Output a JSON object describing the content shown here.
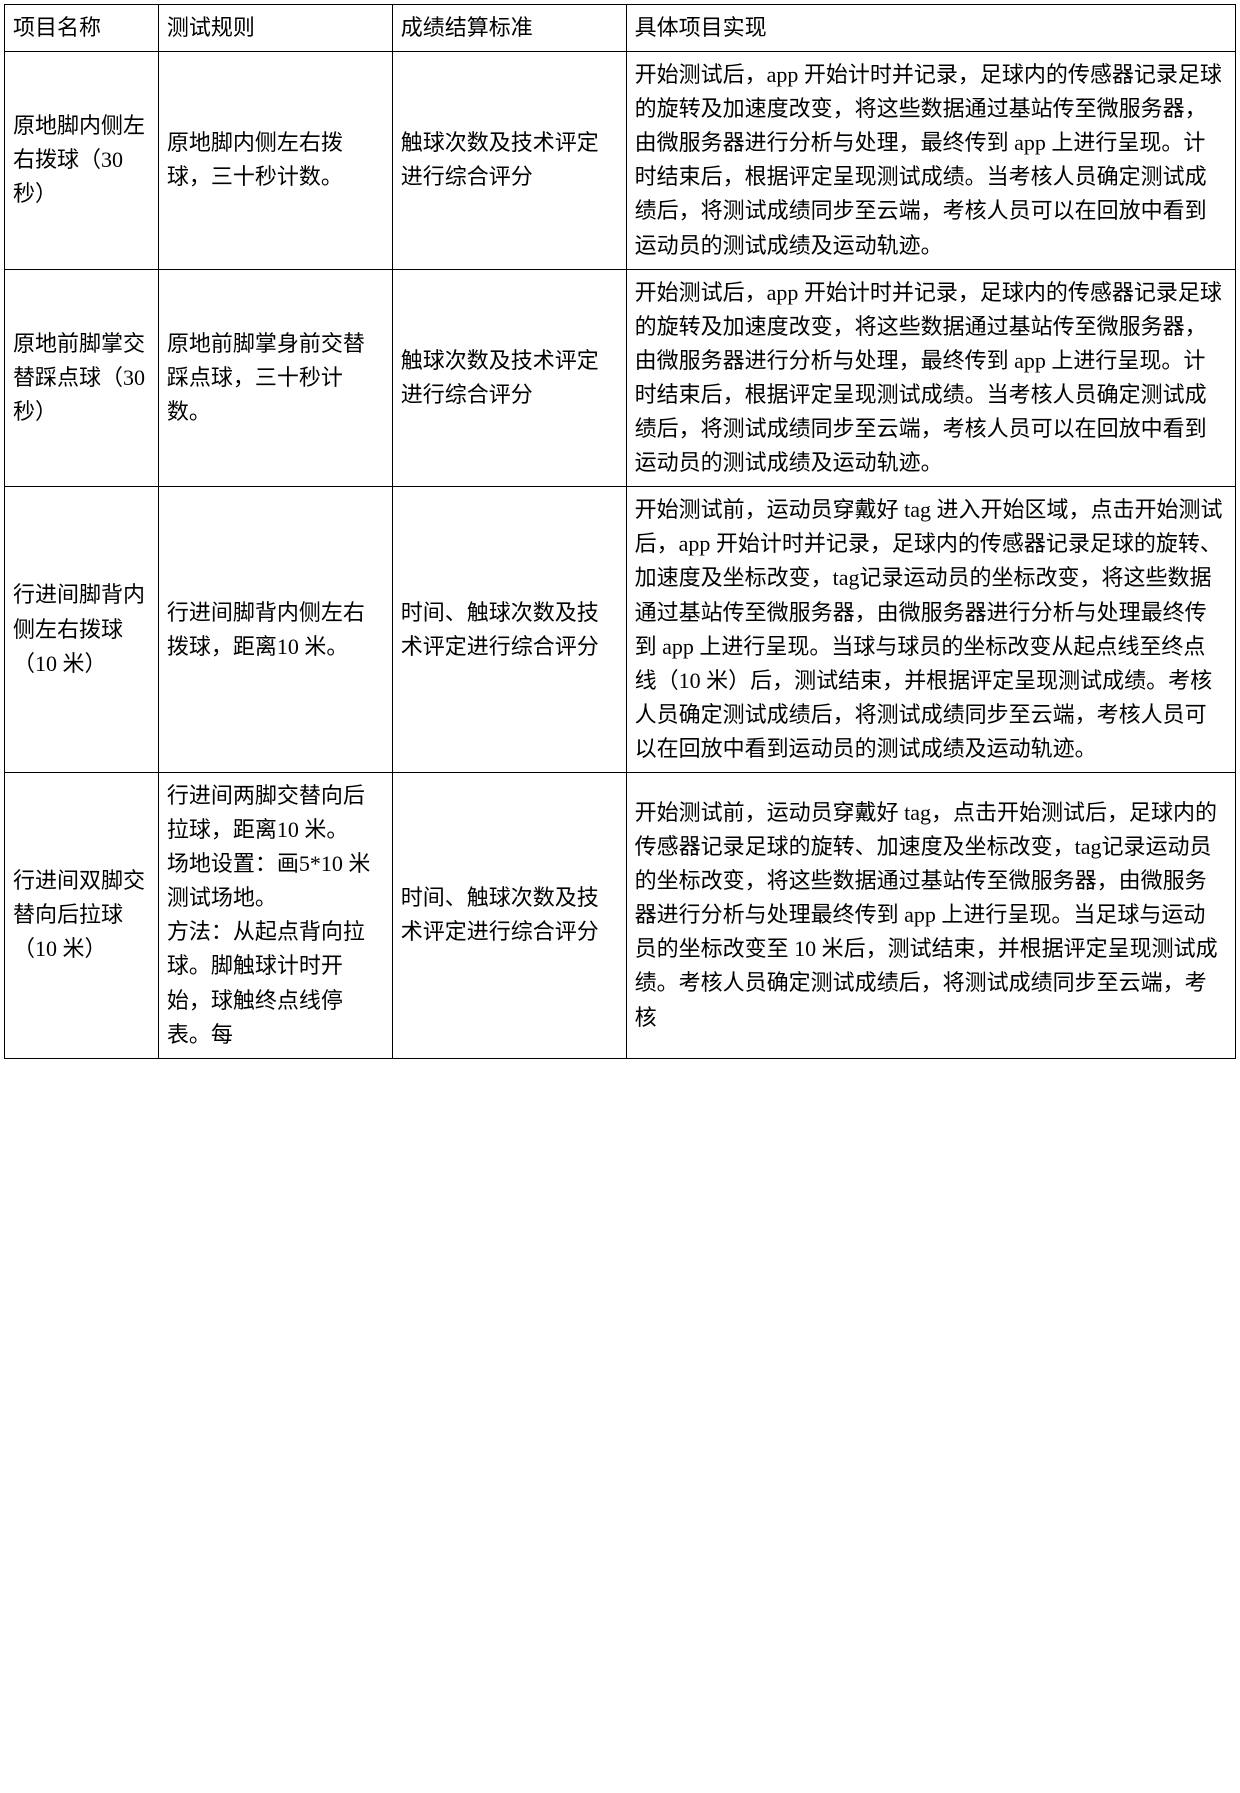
{
  "table": {
    "border_color": "#000000",
    "background_color": "#ffffff",
    "text_color": "#000000",
    "font_size_pt": 16,
    "column_widths_pct": [
      12.5,
      19,
      19,
      49.5
    ],
    "columns": [
      "项目名称",
      "测试规则",
      "成绩结算标准",
      "具体项目实现"
    ],
    "rows": [
      {
        "name": "原地脚内侧左右拨球（30 秒）",
        "rule": "原地脚内侧左右拨球，三十秒计数。",
        "standard": "触球次数及技术评定进行综合评分",
        "impl": "开始测试后，app 开始计时并记录，足球内的传感器记录足球的旋转及加速度改变，将这些数据通过基站传至微服务器，由微服务器进行分析与处理，最终传到 app 上进行呈现。计时结束后，根据评定呈现测试成绩。当考核人员确定测试成绩后，将测试成绩同步至云端，考核人员可以在回放中看到运动员的测试成绩及运动轨迹。"
      },
      {
        "name": "原地前脚掌交替踩点球（30 秒）",
        "rule": "原地前脚掌身前交替踩点球，三十秒计数。",
        "standard": "触球次数及技术评定进行综合评分",
        "impl": "开始测试后，app 开始计时并记录，足球内的传感器记录足球的旋转及加速度改变，将这些数据通过基站传至微服务器，由微服务器进行分析与处理，最终传到 app 上进行呈现。计时结束后，根据评定呈现测试成绩。当考核人员确定测试成绩后，将测试成绩同步至云端，考核人员可以在回放中看到运动员的测试成绩及运动轨迹。"
      },
      {
        "name": "行进间脚背内侧左右拨球（10 米）",
        "rule": "行进间脚背内侧左右拨球，距离10 米。",
        "standard": "时间、触球次数及技术评定进行综合评分",
        "impl": "开始测试前，运动员穿戴好 tag 进入开始区域，点击开始测试后，app 开始计时并记录，足球内的传感器记录足球的旋转、加速度及坐标改变，tag记录运动员的坐标改变，将这些数据通过基站传至微服务器，由微服务器进行分析与处理最终传到 app 上进行呈现。当球与球员的坐标改变从起点线至终点线（10 米）后，测试结束，并根据评定呈现测试成绩。考核人员确定测试成绩后，将测试成绩同步至云端，考核人员可以在回放中看到运动员的测试成绩及运动轨迹。"
      },
      {
        "name": "行进间双脚交替向后拉球（10 米）",
        "rule": "行进间两脚交替向后拉球，距离10 米。\n场地设置：画5*10 米测试场地。\n方法：从起点背向拉球。脚触球计时开始，球触终点线停表。每",
        "standard": "时间、触球次数及技术评定进行综合评分",
        "impl": "开始测试前，运动员穿戴好 tag，点击开始测试后，足球内的传感器记录足球的旋转、加速度及坐标改变，tag记录运动员的坐标改变，将这些数据通过基站传至微服务器，由微服务器进行分析与处理最终传到 app 上进行呈现。当足球与运动员的坐标改变至 10 米后，测试结束，并根据评定呈现测试成绩。考核人员确定测试成绩后，将测试成绩同步至云端，考核"
      }
    ]
  }
}
